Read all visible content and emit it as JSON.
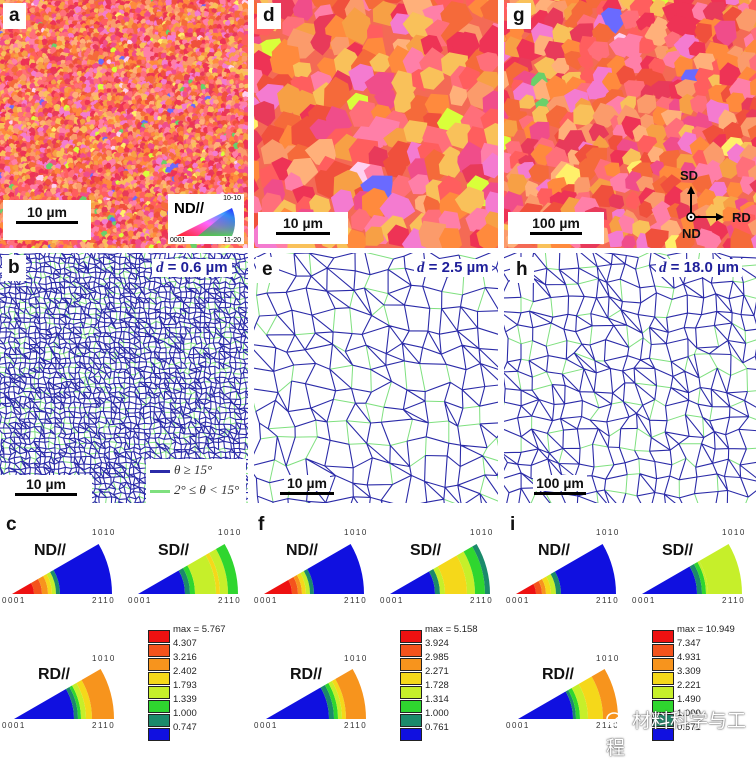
{
  "figure": {
    "columns": [
      {
        "ipf_map": {
          "label": "a",
          "scale_bar": "10 µm",
          "grain_scale": "fine"
        },
        "boundary_map": {
          "label": "b",
          "grain_size_text": "d = 0.6 µm",
          "d_symbol": "d",
          "d_value": "= 0.6 µm",
          "scale_bar": "10 µm"
        },
        "pole_figures": {
          "label": "c",
          "legend_max": "max = 5.767",
          "legend_levels": [
            "4.307",
            "3.216",
            "2.402",
            "1.793",
            "1.339",
            "1.000",
            "0.747"
          ]
        }
      },
      {
        "ipf_map": {
          "label": "d",
          "scale_bar": "10 µm",
          "grain_scale": "medium"
        },
        "boundary_map": {
          "label": "e",
          "grain_size_text": "d = 2.5 µm",
          "d_symbol": "d",
          "d_value": "= 2.5 µm",
          "scale_bar": "10 µm"
        },
        "pole_figures": {
          "label": "f",
          "legend_max": "max = 5.158",
          "legend_levels": [
            "3.924",
            "2.985",
            "2.271",
            "1.728",
            "1.314",
            "1.000",
            "0.761"
          ]
        }
      },
      {
        "ipf_map": {
          "label": "g",
          "scale_bar": "100 µm",
          "grain_scale": "coarse"
        },
        "boundary_map": {
          "label": "h",
          "grain_size_text": "d = 18.0 µm",
          "d_symbol": "d",
          "d_value": "= 18.0 µm",
          "scale_bar": "100 µm"
        },
        "pole_figures": {
          "label": "i",
          "legend_max": "max = 10.949",
          "legend_levels": [
            "7.347",
            "4.931",
            "3.309",
            "2.221",
            "1.490",
            "1.000",
            "0.671"
          ]
        }
      }
    ],
    "ipf_key": {
      "title": "ND//",
      "corner_top": "10-10",
      "corner_left": "0001",
      "corner_right": "11-20"
    },
    "sample_axes": {
      "up": "SD",
      "right": "RD",
      "out": "ND"
    },
    "boundary_legend": {
      "high_angle": "θ ≥ 15°",
      "low_angle": "2° ≤ θ < 15°",
      "high_angle_color": "#2b2ba8",
      "low_angle_color": "#7fe07f"
    },
    "pole_figure_labels": {
      "nd": "ND//",
      "sd": "SD//",
      "rd": "RD//",
      "tick_origin": "0001",
      "tick_top": "1010",
      "tick_right": "2110"
    },
    "legend_colors": [
      "#ee1111",
      "#f4531c",
      "#f7941d",
      "#f5d81a",
      "#c6ef2a",
      "#2fd62f",
      "#1b8a6b",
      "#1010e0"
    ],
    "watermark": "材料科学与工程"
  }
}
